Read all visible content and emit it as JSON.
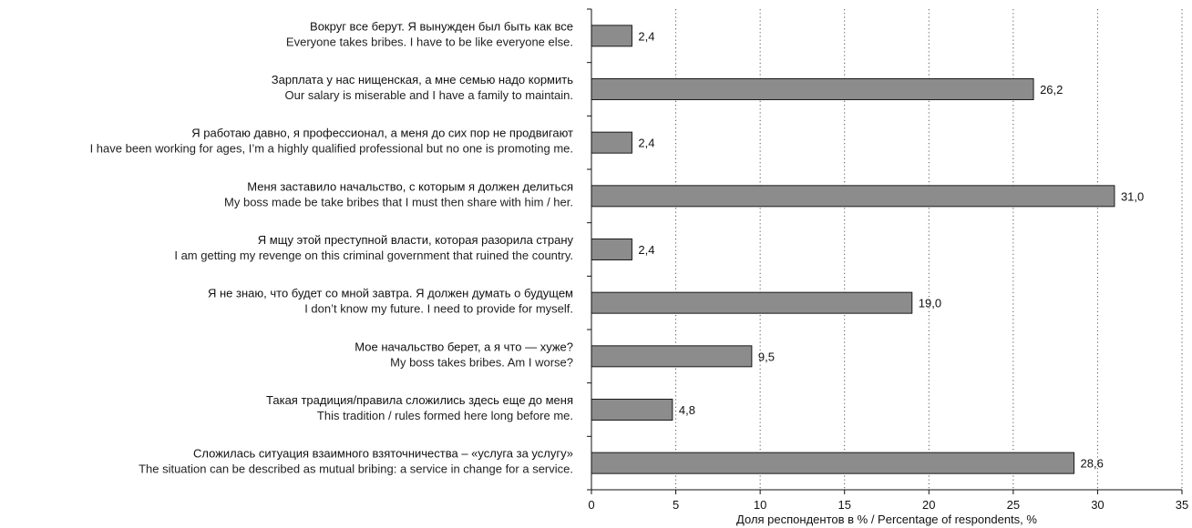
{
  "chart_data": {
    "type": "bar",
    "orientation": "horizontal",
    "categories": [
      {
        "ru": "Вокруг все берут. Я вынужден был быть как все",
        "en": "Everyone takes bribes. I have to be like everyone else."
      },
      {
        "ru": "Зарплата у нас нищенская, а мне семью надо кормить",
        "en": "Our salary is miserable and I have a family to maintain."
      },
      {
        "ru": "Я работаю давно, я профессионал, а меня до сих пор не продвигают",
        "en": "I have been working for ages, I’m a highly qualified professional but no one is promoting me."
      },
      {
        "ru": "Меня заставило начальство, с которым я должен делиться",
        "en": "My boss made be take bribes that I must then share with him / her."
      },
      {
        "ru": "Я мщу этой преступной власти, которая разорила страну",
        "en": "I am getting my revenge on this criminal government that ruined the country."
      },
      {
        "ru": "Я не знаю, что будет со мной завтра. Я должен думать о будущем",
        "en": "I don’t know my future. I need to provide for myself."
      },
      {
        "ru": "Мое начальство берет, а я что — хуже?",
        "en": "My boss takes bribes. Am I worse?"
      },
      {
        "ru": "Такая традиция/правила сложились здесь еще до меня",
        "en": "This tradition / rules formed here long before me."
      },
      {
        "ru": "Сложилась ситуация взаимного взяточничества – «услуга за услугу»",
        "en": "The situation can be described as mutual bribing: a service in change for a service."
      }
    ],
    "values": [
      2.4,
      26.2,
      2.4,
      31.0,
      2.4,
      19.0,
      9.5,
      4.8,
      28.6
    ],
    "value_labels": [
      "2,4",
      "26,2",
      "2,4",
      "31,0",
      "2,4",
      "19,0",
      "9,5",
      "4,8",
      "28,6"
    ],
    "xlim": [
      0,
      35
    ],
    "xticks": [
      0,
      5,
      10,
      15,
      20,
      25,
      30,
      35
    ],
    "xlabel": "Доля респондентов в % / Percentage of respondents, %",
    "grid": "vertical dotted",
    "bar_color": "#8c8c8c",
    "bar_edge_color": "#1a1a1a"
  }
}
